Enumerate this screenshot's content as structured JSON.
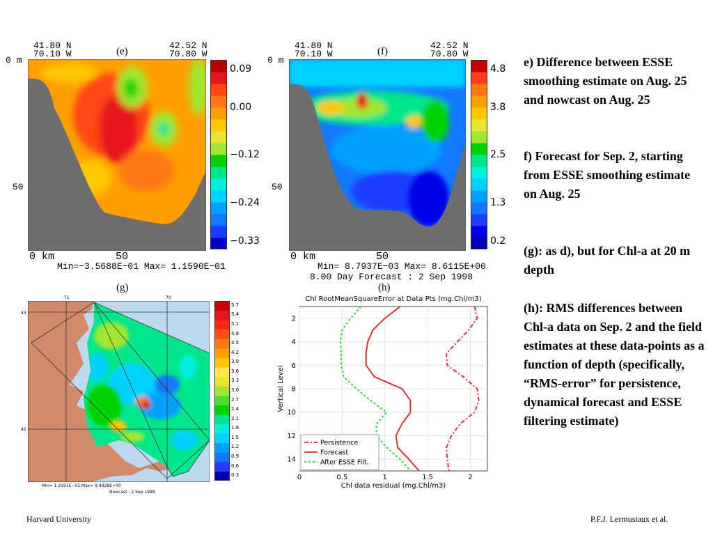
{
  "panels": {
    "e": {
      "label": "(e)",
      "left_coord": [
        "41.80 N",
        "70.10 W"
      ],
      "right_coord": [
        "42.52 N",
        "70.80 W"
      ],
      "depth_top": "0 m",
      "depth_mid": "50",
      "x_unit": "0  km",
      "x_mid": "50",
      "stats": "Min=−3.5688E−01   Max=  1.1590E−01",
      "colorbar_ticks": [
        "0.09",
        "0.00",
        "−0.12",
        "−0.24",
        "−0.33"
      ]
    },
    "f": {
      "label": "(f)",
      "left_coord": [
        "41.80 N",
        "70.10 W"
      ],
      "right_coord": [
        "42.52 N",
        "70.80 W"
      ],
      "depth_top": "0 m",
      "depth_mid": "50",
      "x_unit": "0  km",
      "x_mid": "50",
      "stats": "Min= 8.7937E−03   Max= 8.6115E+00",
      "forecast": "8.00 Day Forecast :  2 Sep 1998",
      "colorbar_ticks": [
        "4.8",
        "3.8",
        "2.5",
        "1.3",
        "0.2"
      ]
    },
    "g": {
      "label": "(g)",
      "lon_ticks": [
        "71",
        "70"
      ],
      "lat_ticks": [
        "43",
        "42"
      ],
      "stats": "Min= 1.3191E−01   Max= 9.4928E+00",
      "nowcast": "Nowcast :  2 Sep 1998",
      "colorbar_ticks": [
        "5.7",
        "5.4",
        "5.1",
        "4.8",
        "4.5",
        "4.2",
        "3.9",
        "3.6",
        "3.3",
        "3.0",
        "2.7",
        "2.4",
        "2.1",
        "1.8",
        "1.5",
        "1.2",
        "0.9",
        "0.6",
        "0.3"
      ]
    },
    "h": {
      "label": "(h)"
    }
  },
  "colors": {
    "land": "#6e6e6e",
    "map_land": "#d08a6c",
    "map_sea": "#bcd9f0",
    "e_scale": [
      "#0000c8",
      "#1e3cff",
      "#1478ff",
      "#00a0ff",
      "#00d2ff",
      "#00f0e0",
      "#00e68c",
      "#00d200",
      "#a0e632",
      "#e6e632",
      "#ffc800",
      "#ffa000",
      "#ff7814",
      "#ff4614",
      "#e6141e",
      "#b40000"
    ],
    "f_scale": [
      "#0000b4",
      "#0000e6",
      "#1e3cff",
      "#1478ff",
      "#00a0ff",
      "#00d2ff",
      "#00f0e0",
      "#00e68c",
      "#00d200",
      "#a0e632",
      "#e6e632",
      "#ffc800",
      "#ffa000",
      "#ff7814",
      "#ff3c1e",
      "#c80000"
    ],
    "g_scale": [
      "#0000b4",
      "#1e3cff",
      "#1478ff",
      "#00a0ff",
      "#00d2ff",
      "#00f0e0",
      "#00e68c",
      "#00d200",
      "#50dc32",
      "#a0e632",
      "#e6e632",
      "#ffe650",
      "#ffc800",
      "#ffa000",
      "#ff7814",
      "#ff5014",
      "#ff2814",
      "#e6141e",
      "#c80000"
    ]
  },
  "chart_data": {
    "type": "line",
    "title": "Chl RootMeanSquareError at Data Pts (mg.Chl/m3)",
    "xlabel": "Chl data residual (mg.Chl/m3)",
    "ylabel": "Vertical Level",
    "xlim": [
      0,
      2.2
    ],
    "ylim": [
      15,
      1
    ],
    "x_ticks": [
      "0",
      "0.5",
      "1",
      "1.5",
      "2"
    ],
    "y_ticks": [
      "2",
      "4",
      "6",
      "8",
      "10",
      "12",
      "14"
    ],
    "legend": "bottom-left",
    "series": [
      {
        "name": "Persistence",
        "color": "#e02020",
        "dash": "6,3,2,3",
        "points": [
          [
            2.05,
            1
          ],
          [
            2.08,
            2
          ],
          [
            1.98,
            3
          ],
          [
            1.85,
            4
          ],
          [
            1.72,
            5
          ],
          [
            1.73,
            6
          ],
          [
            1.92,
            7
          ],
          [
            2.08,
            8
          ],
          [
            2.1,
            9
          ],
          [
            2.05,
            10
          ],
          [
            1.88,
            11
          ],
          [
            1.78,
            12
          ],
          [
            1.72,
            13
          ],
          [
            1.73,
            14
          ],
          [
            1.75,
            15
          ]
        ]
      },
      {
        "name": "Forecast",
        "color": "#e02020",
        "dash": "",
        "points": [
          [
            1.18,
            1
          ],
          [
            1.0,
            2
          ],
          [
            0.86,
            3
          ],
          [
            0.8,
            4
          ],
          [
            0.78,
            5
          ],
          [
            0.78,
            6
          ],
          [
            0.88,
            7
          ],
          [
            1.2,
            8
          ],
          [
            1.3,
            9
          ],
          [
            1.3,
            10
          ],
          [
            1.2,
            11
          ],
          [
            1.13,
            12
          ],
          [
            1.15,
            13
          ],
          [
            1.28,
            14
          ],
          [
            1.4,
            15
          ]
        ]
      },
      {
        "name": "After ESSE Filt.",
        "color": "#22cc22",
        "dash": "3,3",
        "points": [
          [
            0.72,
            1
          ],
          [
            0.6,
            2
          ],
          [
            0.5,
            3
          ],
          [
            0.48,
            4
          ],
          [
            0.49,
            5
          ],
          [
            0.49,
            6
          ],
          [
            0.52,
            7
          ],
          [
            0.67,
            8
          ],
          [
            0.83,
            9
          ],
          [
            1.02,
            10
          ],
          [
            0.9,
            11
          ],
          [
            0.9,
            12
          ],
          [
            1.02,
            13
          ],
          [
            1.18,
            14
          ],
          [
            1.3,
            15
          ]
        ]
      }
    ]
  },
  "captions": {
    "e": "e) Difference between ESSE smoothing estimate on Aug. 25 and nowcast on Aug. 25",
    "f": "f) Forecast for Sep. 2, starting from ESSE smoothing estimate on Aug. 25",
    "g": "(g): as d), but for Chl-a at 20 m depth",
    "h": "(h): RMS differences between Chl-a data on Sep. 2 and the field estimates at these data-points as a function of depth (specifically, “RMS-error” for persistence, dynamical forecast and ESSE filtering estimate)"
  },
  "footer": {
    "left": "Harvard University",
    "right": "P.F.J. Lermusiaux et al."
  }
}
